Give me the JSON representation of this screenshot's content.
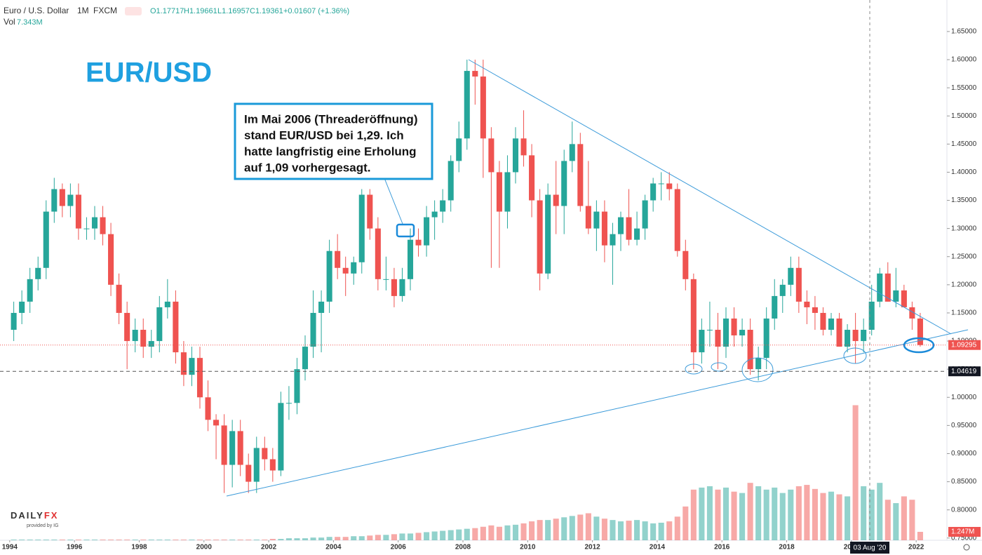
{
  "chart_data": {
    "type": "candlestick",
    "header": {
      "symbol": "Euro / U.S. Dollar",
      "interval": "1M",
      "source": "FXCM",
      "ohlc": [
        "O1.17717",
        "H1.19661",
        "L1.16957",
        "C1.19361",
        "+0.01607 (+1.36%)"
      ],
      "vol_label": "Vol",
      "vol_value": "7.343M"
    },
    "title": "EUR/USD",
    "annotation": [
      "Im Mai 2006 (Threaderöffnung)",
      "stand EUR/USD bei 1,29. Ich",
      "hatte langfristig eine Erholung",
      "auf 1,09 vorhergesagt."
    ],
    "logo": [
      "DAILY",
      "FX",
      "provided by IG"
    ],
    "crosshair_label": "03 Aug '20",
    "up_color": "#26a69a",
    "down_color": "#ef5350",
    "xlim": [
      1993.7,
      2022.95
    ],
    "xticks": [
      1994,
      1996,
      1998,
      2000,
      2002,
      2004,
      2006,
      2008,
      2010,
      2012,
      2014,
      2016,
      2018,
      2020,
      2022
    ],
    "ylim": [
      0.746,
      1.706
    ],
    "yticks": [
      {
        "value": 0.75,
        "label": "0.75000"
      },
      {
        "value": 0.8,
        "label": "0.80000"
      },
      {
        "value": 0.85,
        "label": "0.85000"
      },
      {
        "value": 0.9,
        "label": "0.90000"
      },
      {
        "value": 0.95,
        "label": "0.95000"
      },
      {
        "value": 1.0,
        "label": "1.00000"
      },
      {
        "value": 1.05,
        "label": "1.05000"
      },
      {
        "value": 1.1,
        "label": "1.10000"
      },
      {
        "value": 1.15,
        "label": "1.15000"
      },
      {
        "value": 1.2,
        "label": "1.20000"
      },
      {
        "value": 1.25,
        "label": "1.25000"
      },
      {
        "value": 1.3,
        "label": "1.30000"
      },
      {
        "value": 1.35,
        "label": "1.35000"
      },
      {
        "value": 1.4,
        "label": "1.40000"
      },
      {
        "value": 1.45,
        "label": "1.45000"
      },
      {
        "value": 1.5,
        "label": "1.50000"
      },
      {
        "value": 1.55,
        "label": "1.55000"
      },
      {
        "value": 1.6,
        "label": "1.60000"
      },
      {
        "value": 1.65,
        "label": "1.65000"
      }
    ],
    "y2lim": [
      0,
      80
    ],
    "last_price": 1.09295,
    "level": 1.04619,
    "last_volume_label": "1.247M",
    "candles": {
      "x": [
        1994.125,
        1994.375,
        1994.625,
        1994.875,
        1995.125,
        1995.375,
        1995.625,
        1995.875,
        1996.125,
        1996.375,
        1996.625,
        1996.875,
        1997.125,
        1997.375,
        1997.625,
        1997.875,
        1998.125,
        1998.375,
        1998.625,
        1998.875,
        1999.125,
        1999.375,
        1999.625,
        1999.875,
        2000.125,
        2000.375,
        2000.625,
        2000.875,
        2001.125,
        2001.375,
        2001.625,
        2001.875,
        2002.125,
        2002.375,
        2002.625,
        2002.875,
        2003.125,
        2003.375,
        2003.625,
        2003.875,
        2004.125,
        2004.375,
        2004.625,
        2004.875,
        2005.125,
        2005.375,
        2005.625,
        2005.875,
        2006.125,
        2006.375,
        2006.625,
        2006.875,
        2007.125,
        2007.375,
        2007.625,
        2007.875,
        2008.125,
        2008.375,
        2008.625,
        2008.875,
        2009.125,
        2009.375,
        2009.625,
        2009.875,
        2010.125,
        2010.375,
        2010.625,
        2010.875,
        2011.125,
        2011.375,
        2011.625,
        2011.875,
        2012.125,
        2012.375,
        2012.625,
        2012.875,
        2013.125,
        2013.375,
        2013.625,
        2013.875,
        2014.125,
        2014.375,
        2014.625,
        2014.875,
        2015.125,
        2015.375,
        2015.625,
        2015.875,
        2016.125,
        2016.375,
        2016.625,
        2016.875,
        2017.125,
        2017.375,
        2017.625,
        2017.875,
        2018.125,
        2018.375,
        2018.625,
        2018.875,
        2019.125,
        2019.375,
        2019.625,
        2019.875,
        2020.125,
        2020.375,
        2020.625,
        2020.875,
        2021.125,
        2021.375,
        2021.625,
        2021.875,
        2022.125
      ],
      "open": [
        1.12,
        1.15,
        1.17,
        1.21,
        1.23,
        1.33,
        1.37,
        1.34,
        1.36,
        1.3,
        1.3,
        1.32,
        1.29,
        1.2,
        1.15,
        1.1,
        1.12,
        1.09,
        1.1,
        1.16,
        1.17,
        1.08,
        1.04,
        1.07,
        1.0,
        0.96,
        0.95,
        0.88,
        0.94,
        0.88,
        0.85,
        0.91,
        0.89,
        0.87,
        0.99,
        0.99,
        1.05,
        1.09,
        1.15,
        1.17,
        1.26,
        1.23,
        1.22,
        1.24,
        1.36,
        1.3,
        1.21,
        1.21,
        1.18,
        1.21,
        1.28,
        1.27,
        1.32,
        1.33,
        1.35,
        1.42,
        1.46,
        1.58,
        1.57,
        1.46,
        1.4,
        1.33,
        1.4,
        1.46,
        1.43,
        1.35,
        1.22,
        1.36,
        1.34,
        1.42,
        1.45,
        1.34,
        1.3,
        1.33,
        1.27,
        1.29,
        1.32,
        1.28,
        1.3,
        1.35,
        1.38,
        1.38,
        1.37,
        1.26,
        1.21,
        1.08,
        1.12,
        1.12,
        1.09,
        1.14,
        1.11,
        1.12,
        1.05,
        1.07,
        1.14,
        1.18,
        1.2,
        1.23,
        1.17,
        1.16,
        1.15,
        1.12,
        1.14,
        1.09,
        1.12,
        1.1,
        1.12,
        1.17,
        1.22,
        1.17,
        1.19,
        1.16,
        1.14
      ],
      "high": [
        1.17,
        1.19,
        1.23,
        1.25,
        1.35,
        1.39,
        1.38,
        1.38,
        1.38,
        1.32,
        1.34,
        1.34,
        1.31,
        1.22,
        1.17,
        1.14,
        1.14,
        1.12,
        1.18,
        1.21,
        1.19,
        1.1,
        1.09,
        1.09,
        1.03,
        0.97,
        0.97,
        0.96,
        0.96,
        0.9,
        0.93,
        0.93,
        0.91,
        1.01,
        1.02,
        1.07,
        1.11,
        1.19,
        1.19,
        1.28,
        1.29,
        1.25,
        1.25,
        1.37,
        1.37,
        1.32,
        1.25,
        1.23,
        1.23,
        1.3,
        1.3,
        1.34,
        1.35,
        1.37,
        1.43,
        1.49,
        1.6,
        1.6,
        1.6,
        1.48,
        1.42,
        1.43,
        1.48,
        1.51,
        1.45,
        1.37,
        1.38,
        1.42,
        1.44,
        1.49,
        1.47,
        1.42,
        1.35,
        1.35,
        1.31,
        1.33,
        1.37,
        1.33,
        1.36,
        1.39,
        1.4,
        1.4,
        1.38,
        1.28,
        1.22,
        1.14,
        1.17,
        1.15,
        1.16,
        1.16,
        1.14,
        1.14,
        1.09,
        1.16,
        1.21,
        1.21,
        1.25,
        1.25,
        1.19,
        1.18,
        1.16,
        1.15,
        1.15,
        1.13,
        1.15,
        1.14,
        1.2,
        1.23,
        1.24,
        1.23,
        1.2,
        1.17,
        1.15
      ],
      "low": [
        1.1,
        1.13,
        1.15,
        1.19,
        1.21,
        1.31,
        1.32,
        1.32,
        1.28,
        1.28,
        1.28,
        1.27,
        1.18,
        1.13,
        1.05,
        1.08,
        1.07,
        1.07,
        1.08,
        1.14,
        1.06,
        1.02,
        1.02,
        0.98,
        0.94,
        0.89,
        0.83,
        0.84,
        0.86,
        0.83,
        0.83,
        0.87,
        0.85,
        0.86,
        0.96,
        0.97,
        1.03,
        1.07,
        1.08,
        1.15,
        1.21,
        1.18,
        1.2,
        1.22,
        1.28,
        1.19,
        1.19,
        1.16,
        1.17,
        1.19,
        1.25,
        1.25,
        1.28,
        1.31,
        1.33,
        1.4,
        1.44,
        1.52,
        1.39,
        1.23,
        1.23,
        1.3,
        1.38,
        1.41,
        1.32,
        1.19,
        1.21,
        1.29,
        1.29,
        1.4,
        1.33,
        1.29,
        1.26,
        1.24,
        1.2,
        1.26,
        1.27,
        1.27,
        1.28,
        1.33,
        1.35,
        1.35,
        1.25,
        1.19,
        1.05,
        1.06,
        1.09,
        1.05,
        1.07,
        1.09,
        1.09,
        1.04,
        1.03,
        1.05,
        1.12,
        1.15,
        1.18,
        1.15,
        1.13,
        1.12,
        1.11,
        1.11,
        1.09,
        1.08,
        1.06,
        1.08,
        1.11,
        1.16,
        1.17,
        1.16,
        1.16,
        1.12,
        1.09
      ],
      "close": [
        1.15,
        1.17,
        1.21,
        1.23,
        1.33,
        1.37,
        1.34,
        1.36,
        1.3,
        1.3,
        1.32,
        1.29,
        1.2,
        1.15,
        1.1,
        1.12,
        1.09,
        1.1,
        1.16,
        1.17,
        1.08,
        1.04,
        1.07,
        1.0,
        0.96,
        0.95,
        0.88,
        0.94,
        0.88,
        0.85,
        0.91,
        0.89,
        0.87,
        0.99,
        0.99,
        1.05,
        1.09,
        1.15,
        1.17,
        1.26,
        1.23,
        1.22,
        1.24,
        1.36,
        1.3,
        1.21,
        1.21,
        1.18,
        1.21,
        1.28,
        1.27,
        1.32,
        1.33,
        1.35,
        1.42,
        1.46,
        1.58,
        1.57,
        1.46,
        1.4,
        1.33,
        1.4,
        1.46,
        1.43,
        1.35,
        1.22,
        1.36,
        1.34,
        1.42,
        1.45,
        1.34,
        1.3,
        1.33,
        1.27,
        1.29,
        1.32,
        1.28,
        1.3,
        1.35,
        1.38,
        1.38,
        1.37,
        1.26,
        1.21,
        1.08,
        1.12,
        1.12,
        1.09,
        1.14,
        1.11,
        1.12,
        1.05,
        1.07,
        1.14,
        1.18,
        1.2,
        1.23,
        1.17,
        1.16,
        1.15,
        1.12,
        1.14,
        1.09,
        1.12,
        1.1,
        1.12,
        1.17,
        1.22,
        1.17,
        1.19,
        1.16,
        1.14,
        1.09295
      ],
      "volume": [
        0.1,
        0.1,
        0.1,
        0.1,
        0.1,
        0.1,
        0.1,
        0.1,
        0.1,
        0.1,
        0.1,
        0.1,
        0.1,
        0.1,
        0.1,
        0.1,
        0.1,
        0.1,
        0.1,
        0.1,
        0.1,
        0.1,
        0.1,
        0.1,
        0.1,
        0.1,
        0.1,
        0.1,
        0.1,
        0.1,
        0.1,
        0.1,
        0.2,
        0.2,
        0.3,
        0.3,
        0.3,
        0.4,
        0.4,
        0.5,
        0.5,
        0.5,
        0.6,
        0.6,
        0.7,
        0.8,
        0.8,
        0.9,
        1.0,
        1.0,
        1.1,
        1.2,
        1.3,
        1.4,
        1.5,
        1.6,
        1.7,
        1.8,
        2.0,
        2.2,
        2.0,
        2.2,
        2.3,
        2.5,
        2.8,
        3.0,
        3.0,
        3.2,
        3.4,
        3.6,
        3.8,
        4.0,
        3.5,
        3.2,
        3.0,
        2.8,
        2.9,
        3.0,
        2.8,
        2.5,
        2.6,
        2.8,
        3.5,
        5.0,
        7.5,
        7.8,
        8.0,
        7.5,
        7.8,
        7.2,
        7.0,
        8.5,
        8.0,
        7.5,
        7.8,
        7.0,
        7.5,
        8.0,
        8.2,
        7.6,
        7.0,
        7.2,
        6.8,
        6.5,
        20.0,
        8.0,
        7.5,
        8.5,
        6.0,
        5.5,
        6.5,
        6.0,
        1.247
      ]
    }
  }
}
